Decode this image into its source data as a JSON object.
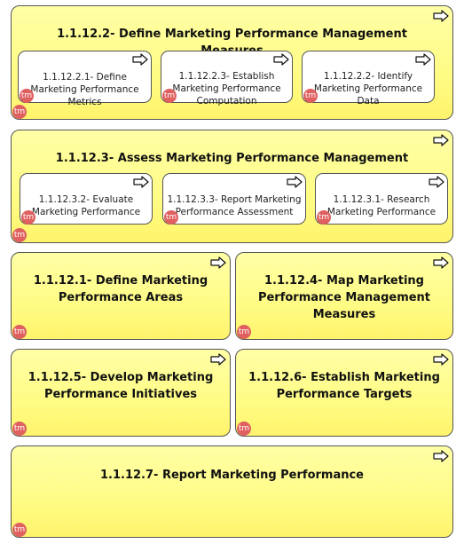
{
  "icons": {
    "process_arrow": "process-arrow-icon",
    "tm_badge": "tm-badge-icon"
  },
  "tm_label": "tm",
  "boxes": {
    "b1": {
      "title": "1.1.12.2- Define Marketing Performance Management Measures",
      "subs": [
        "1.1.12.2.1- Define Marketing Performance Metrics",
        "1.1.12.2.3- Establish Marketing Performance Computation",
        "1.1.12.2.2- Identify Marketing Performance Data"
      ]
    },
    "b2": {
      "title": "1.1.12.3- Assess Marketing Performance Management",
      "subs": [
        "1.1.12.3.2- Evaluate Marketing Performance",
        "1.1.12.3.3- Report Marketing Performance Assessment",
        "1.1.12.3.1- Research Marketing Performance"
      ]
    },
    "b3": {
      "title": "1.1.12.1- Define Marketing Performance Areas"
    },
    "b4": {
      "title": "1.1.12.4- Map Marketing Performance Management Measures"
    },
    "b5": {
      "title": "1.1.12.5- Develop Marketing Performance Initiatives"
    },
    "b6": {
      "title": "1.1.12.6- Establish Marketing Performance Targets"
    },
    "b7": {
      "title": "1.1.12.7- Report Marketing Performance"
    }
  },
  "colors": {
    "box_fill": "#fffc85",
    "badge": "#e06060",
    "border": "#555555"
  }
}
